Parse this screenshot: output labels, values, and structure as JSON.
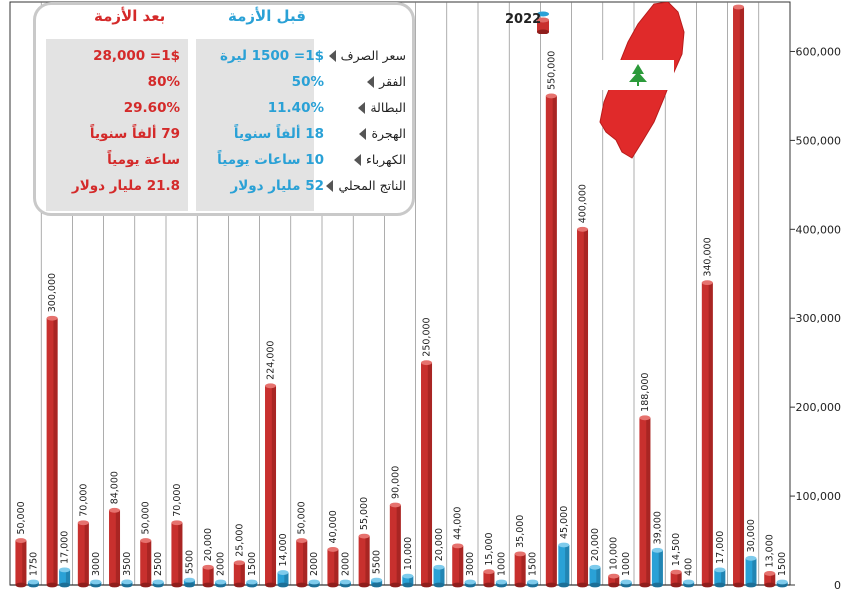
{
  "chart_data": {
    "type": "bar",
    "ylim": [
      0,
      650000
    ],
    "yticks": [
      0,
      100000,
      200000,
      300000,
      400000,
      500000,
      600000
    ],
    "ytick_labels": [
      "0",
      "100,000",
      "200,000",
      "300,000",
      "400,000",
      "500,000",
      "600,000"
    ],
    "series": [
      {
        "name": "2022",
        "color": "#c8302e",
        "values": [
          50000,
          300000,
          70000,
          84000,
          50000,
          70000,
          20000,
          25000,
          224000,
          50000,
          40000,
          55000,
          90000,
          250000,
          44000,
          15000,
          35000,
          550000,
          400000,
          10000,
          188000,
          14500,
          340000,
          650000,
          13000
        ],
        "labels": [
          "50,000",
          "300,000",
          "70,000",
          "84,000",
          "50,000",
          "70,000",
          "20,000",
          "25,000",
          "224,000",
          "50,000",
          "40,000",
          "55,000",
          "90,000",
          "250,000",
          "44,000",
          "15,000",
          "35,000",
          "550,000",
          "400,000",
          "10,000",
          "188,000",
          "14,500",
          "340,000",
          "",
          "13,000"
        ]
      },
      {
        "name": "",
        "color": "#2aa1d6",
        "values": [
          1750,
          17000,
          3000,
          3500,
          2500,
          5500,
          2000,
          1500,
          14000,
          2000,
          2000,
          5500,
          10000,
          20000,
          3000,
          1000,
          1500,
          45000,
          20000,
          1000,
          39000,
          400,
          17000,
          30000,
          1500
        ],
        "labels": [
          "1750",
          "17,000",
          "3000",
          "3500",
          "2500",
          "5500",
          "2000",
          "1500",
          "14,000",
          "2000",
          "2000",
          "5500",
          "10,000",
          "20,000",
          "3000",
          "1000",
          "1500",
          "45,000",
          "20,000",
          "1000",
          "39,000",
          "400",
          "17,000",
          "30,000",
          "1500"
        ]
      }
    ]
  },
  "legend": {
    "year": "2022"
  },
  "table": {
    "header_before": "قبل الأزمة",
    "header_after": "بعد الأزمة",
    "rows": [
      {
        "label": "سعر الصرف",
        "before": "1$= 1500 ليرة",
        "after": "1$= 28,000"
      },
      {
        "label": "الفقر",
        "before": "50%",
        "after": "80%"
      },
      {
        "label": "البطالة",
        "before": "11.40%",
        "after": "29.60%"
      },
      {
        "label": "الهجرة",
        "before": "18 ألفاً سنوياً",
        "after": "79 ألفاً سنوياً"
      },
      {
        "label": "الكهرباء",
        "before": "10 ساعات يومياً",
        "after": "ساعة يومياً"
      },
      {
        "label": "الناتج المحلي",
        "before": "52 مليار دولار",
        "after": "21.8 مليار دولار"
      }
    ]
  }
}
